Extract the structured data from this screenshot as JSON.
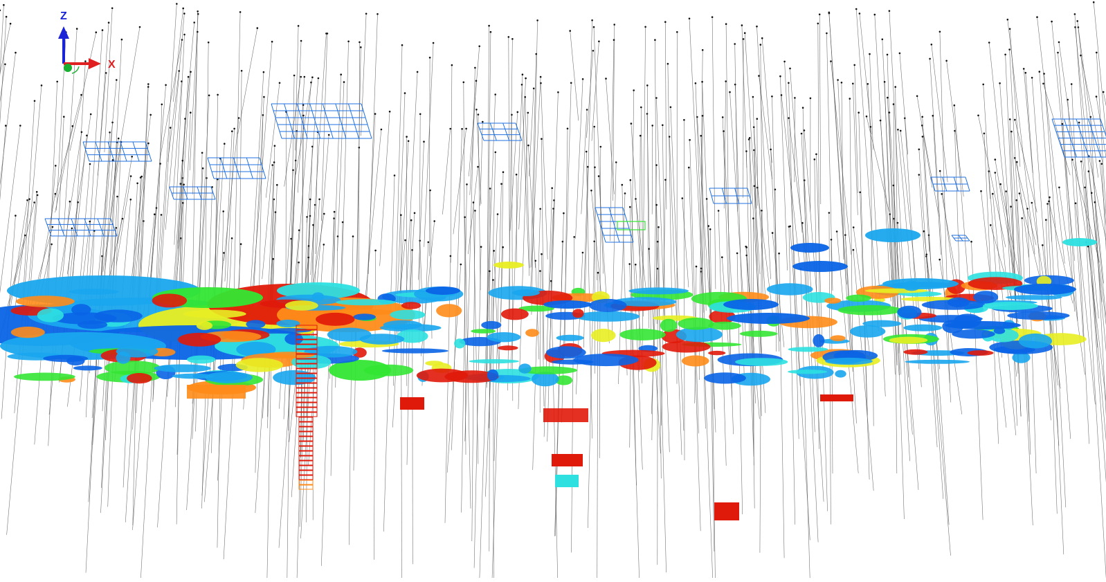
{
  "viewport": {
    "background": "#ffffff",
    "palette": {
      "blue": "#0a64e6",
      "dark_blue": "#1d4fd6",
      "light_blue": "#1aa6ee",
      "cyan": "#2ee0e0",
      "green": "#33e633",
      "yellow": "#e8ee22",
      "orange": "#ff8c1a",
      "red": "#e01a0a",
      "drillhole_line": "#444444",
      "wireframe_blue": "#1f6fe0"
    }
  },
  "axis_gizmo": {
    "z_label": "Z",
    "x_label": "X",
    "z_color": "#1a24d6",
    "x_color": "#e02020",
    "y_color": "#18b030"
  }
}
